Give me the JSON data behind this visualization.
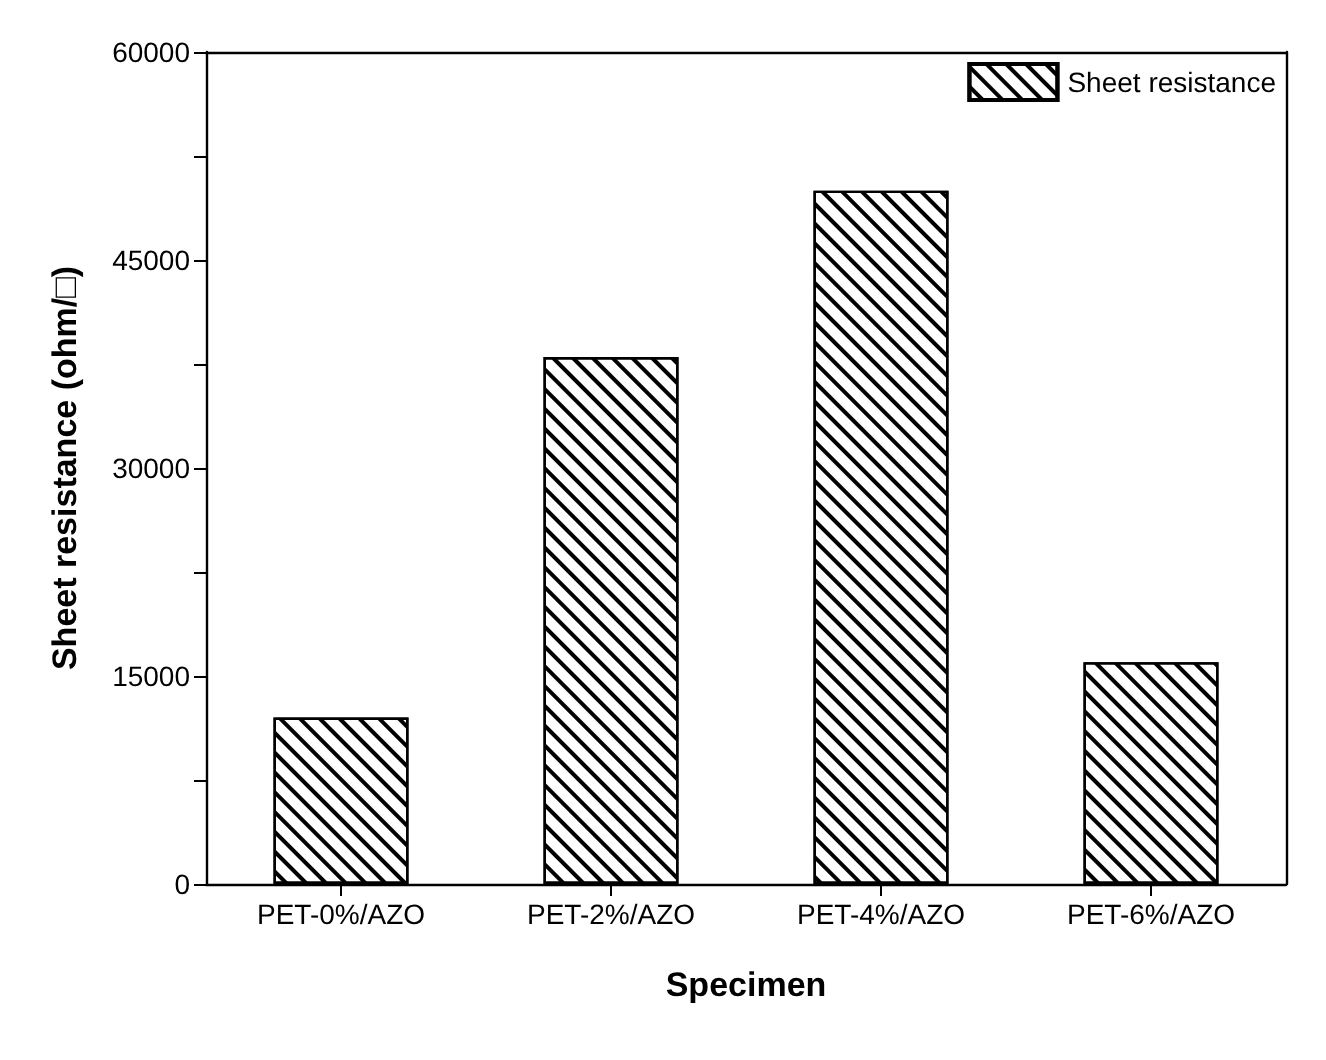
{
  "chart_data": {
    "type": "bar",
    "xlabel": "Specimen",
    "ylabel": "Sheet resistance (ohm/□)",
    "categories": [
      "PET-0%/AZO",
      "PET-2%/AZO",
      "PET-4%/AZO",
      "PET-6%/AZO"
    ],
    "series": [
      {
        "name": "Sheet resistance",
        "color": "#ffffff",
        "values": [
          12000,
          38000,
          50000,
          16000
        ]
      }
    ],
    "ylim": [
      0,
      60000
    ],
    "yticks": [
      0,
      {
        "value": 7500,
        "label": null
      },
      15000,
      {
        "value": 22500,
        "label": null
      },
      30000,
      {
        "value": 37500,
        "label": null
      },
      45000,
      {
        "value": 52500,
        "label": null
      },
      60000
    ],
    "grid": false,
    "legend": "top right"
  }
}
